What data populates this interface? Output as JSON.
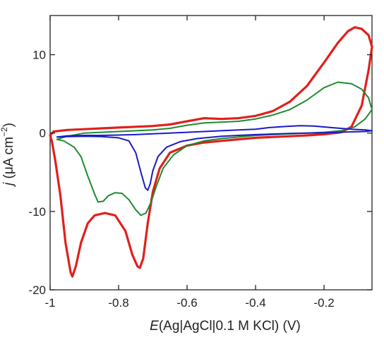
{
  "chart_data": {
    "type": "line",
    "title": "",
    "xlabel": {
      "italic": "E",
      "rest": "(Ag|AgCl|0.1 M KCl)  (V)"
    },
    "ylabel": {
      "italic": "j",
      "rest": " (μA cm",
      "sup": "−2",
      "close": ")"
    },
    "xlim": [
      -1.0,
      -0.06
    ],
    "ylim": [
      -20,
      15
    ],
    "xticks": [
      -1.0,
      -0.8,
      -0.6,
      -0.4,
      -0.2
    ],
    "xtick_labels": [
      "-1",
      "-0.8",
      "-0.6",
      "-0.4",
      "-0.2"
    ],
    "yticks": [
      -20,
      -10,
      0,
      10
    ],
    "ytick_labels": [
      "-20",
      "-10",
      "0",
      "10"
    ],
    "grid": false,
    "legend": "none",
    "series": [
      {
        "color": "#e0201c",
        "points": [
          [
            -0.06,
            11.0
          ],
          [
            -0.07,
            12.5
          ],
          [
            -0.09,
            13.3
          ],
          [
            -0.11,
            13.5
          ],
          [
            -0.13,
            13.0
          ],
          [
            -0.16,
            11.5
          ],
          [
            -0.2,
            9.0
          ],
          [
            -0.25,
            6.0
          ],
          [
            -0.3,
            4.0
          ],
          [
            -0.35,
            2.8
          ],
          [
            -0.4,
            2.2
          ],
          [
            -0.45,
            1.9
          ],
          [
            -0.5,
            1.8
          ],
          [
            -0.55,
            1.9
          ],
          [
            -0.6,
            1.5
          ],
          [
            -0.65,
            1.1
          ],
          [
            -0.7,
            0.9
          ],
          [
            -0.75,
            0.8
          ],
          [
            -0.8,
            0.7
          ],
          [
            -0.85,
            0.6
          ],
          [
            -0.9,
            0.5
          ],
          [
            -0.95,
            0.4
          ],
          [
            -0.99,
            0.2
          ],
          [
            -1.0,
            -0.3
          ],
          [
            -0.995,
            -1.0
          ],
          [
            -0.985,
            -3.5
          ],
          [
            -0.97,
            -8.0
          ],
          [
            -0.955,
            -14.0
          ],
          [
            -0.94,
            -17.8
          ],
          [
            -0.935,
            -18.3
          ],
          [
            -0.925,
            -17.0
          ],
          [
            -0.91,
            -14.0
          ],
          [
            -0.89,
            -11.5
          ],
          [
            -0.87,
            -10.5
          ],
          [
            -0.84,
            -10.2
          ],
          [
            -0.81,
            -10.5
          ],
          [
            -0.78,
            -12.5
          ],
          [
            -0.76,
            -15.5
          ],
          [
            -0.745,
            -17.0
          ],
          [
            -0.738,
            -17.2
          ],
          [
            -0.728,
            -16.0
          ],
          [
            -0.715,
            -11.5
          ],
          [
            -0.7,
            -7.5
          ],
          [
            -0.68,
            -4.5
          ],
          [
            -0.65,
            -2.5
          ],
          [
            -0.6,
            -1.6
          ],
          [
            -0.55,
            -1.2
          ],
          [
            -0.5,
            -1.0
          ],
          [
            -0.45,
            -0.8
          ],
          [
            -0.4,
            -0.6
          ],
          [
            -0.35,
            -0.5
          ],
          [
            -0.3,
            -0.4
          ],
          [
            -0.25,
            -0.3
          ],
          [
            -0.2,
            -0.15
          ],
          [
            -0.15,
            0.1
          ],
          [
            -0.12,
            0.8
          ],
          [
            -0.09,
            3.5
          ],
          [
            -0.07,
            8.0
          ],
          [
            -0.06,
            11.0
          ]
        ]
      },
      {
        "color": "#1e8a2e",
        "points": [
          [
            -0.06,
            3.0
          ],
          [
            -0.07,
            4.5
          ],
          [
            -0.09,
            5.6
          ],
          [
            -0.12,
            6.3
          ],
          [
            -0.16,
            6.5
          ],
          [
            -0.2,
            5.8
          ],
          [
            -0.25,
            4.2
          ],
          [
            -0.3,
            3.0
          ],
          [
            -0.35,
            2.3
          ],
          [
            -0.4,
            1.8
          ],
          [
            -0.45,
            1.5
          ],
          [
            -0.5,
            1.4
          ],
          [
            -0.55,
            1.3
          ],
          [
            -0.6,
            1.0
          ],
          [
            -0.65,
            0.6
          ],
          [
            -0.7,
            0.4
          ],
          [
            -0.75,
            0.3
          ],
          [
            -0.8,
            0.2
          ],
          [
            -0.85,
            0.1
          ],
          [
            -0.9,
            0.0
          ],
          [
            -0.95,
            -0.4
          ],
          [
            -0.98,
            -0.8
          ],
          [
            -0.96,
            -1.0
          ],
          [
            -0.93,
            -1.8
          ],
          [
            -0.91,
            -3.0
          ],
          [
            -0.89,
            -5.5
          ],
          [
            -0.87,
            -7.8
          ],
          [
            -0.86,
            -8.8
          ],
          [
            -0.845,
            -8.7
          ],
          [
            -0.83,
            -8.0
          ],
          [
            -0.81,
            -7.6
          ],
          [
            -0.79,
            -7.7
          ],
          [
            -0.77,
            -8.5
          ],
          [
            -0.75,
            -9.8
          ],
          [
            -0.735,
            -10.5
          ],
          [
            -0.72,
            -10.2
          ],
          [
            -0.705,
            -8.8
          ],
          [
            -0.69,
            -6.8
          ],
          [
            -0.67,
            -4.5
          ],
          [
            -0.64,
            -2.8
          ],
          [
            -0.6,
            -1.6
          ],
          [
            -0.55,
            -1.0
          ],
          [
            -0.5,
            -0.7
          ],
          [
            -0.45,
            -0.5
          ],
          [
            -0.4,
            -0.3
          ],
          [
            -0.3,
            -0.1
          ],
          [
            -0.2,
            0.1
          ],
          [
            -0.15,
            0.3
          ],
          [
            -0.11,
            0.8
          ],
          [
            -0.08,
            1.8
          ],
          [
            -0.06,
            3.0
          ]
        ]
      },
      {
        "color": "#1a1ac8",
        "points": [
          [
            -0.06,
            0.3
          ],
          [
            -0.08,
            0.4
          ],
          [
            -0.12,
            0.5
          ],
          [
            -0.18,
            0.7
          ],
          [
            -0.23,
            0.9
          ],
          [
            -0.27,
            0.95
          ],
          [
            -0.31,
            0.85
          ],
          [
            -0.36,
            0.7
          ],
          [
            -0.4,
            0.5
          ],
          [
            -0.45,
            0.4
          ],
          [
            -0.5,
            0.3
          ],
          [
            -0.55,
            0.2
          ],
          [
            -0.6,
            0.1
          ],
          [
            -0.65,
            0.0
          ],
          [
            -0.7,
            -0.1
          ],
          [
            -0.75,
            -0.2
          ],
          [
            -0.8,
            -0.25
          ],
          [
            -0.85,
            -0.3
          ],
          [
            -0.9,
            -0.3
          ],
          [
            -0.95,
            -0.35
          ],
          [
            -0.98,
            -0.5
          ],
          [
            -0.95,
            -0.45
          ],
          [
            -0.9,
            -0.4
          ],
          [
            -0.85,
            -0.45
          ],
          [
            -0.8,
            -0.6
          ],
          [
            -0.77,
            -1.0
          ],
          [
            -0.75,
            -2.5
          ],
          [
            -0.735,
            -5.0
          ],
          [
            -0.722,
            -7.0
          ],
          [
            -0.715,
            -7.3
          ],
          [
            -0.708,
            -6.5
          ],
          [
            -0.7,
            -4.8
          ],
          [
            -0.685,
            -3.0
          ],
          [
            -0.66,
            -1.8
          ],
          [
            -0.62,
            -1.1
          ],
          [
            -0.57,
            -0.7
          ],
          [
            -0.5,
            -0.4
          ],
          [
            -0.45,
            -0.3
          ],
          [
            -0.4,
            -0.2
          ],
          [
            -0.3,
            -0.05
          ],
          [
            -0.2,
            0.05
          ],
          [
            -0.12,
            0.15
          ],
          [
            -0.08,
            0.2
          ],
          [
            -0.06,
            0.3
          ]
        ]
      }
    ]
  }
}
